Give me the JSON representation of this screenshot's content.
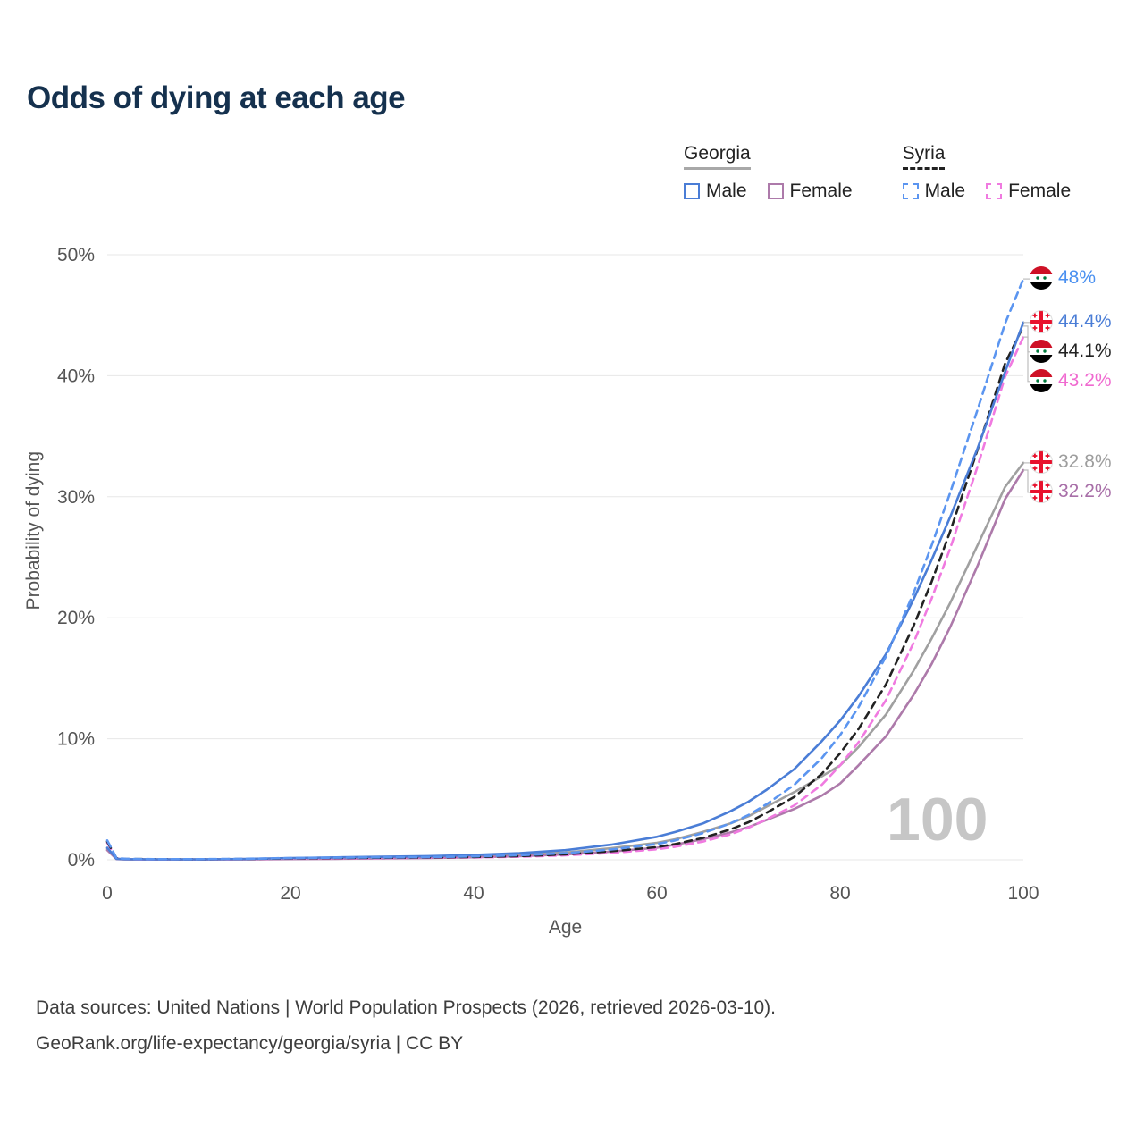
{
  "title": "Odds of dying at each age",
  "legend": {
    "georgia": {
      "label": "Georgia",
      "male": "Male",
      "female": "Female"
    },
    "syria": {
      "label": "Syria",
      "male": "Male",
      "female": "Female"
    }
  },
  "chart_data": {
    "type": "line",
    "title": "Odds of dying at each age",
    "xlabel": "Age",
    "ylabel": "Probability of dying",
    "xlim": [
      0,
      100
    ],
    "ylim": [
      0,
      50
    ],
    "x_ticks": [
      0,
      20,
      40,
      60,
      80,
      100
    ],
    "y_ticks": [
      0,
      10,
      20,
      30,
      40,
      50
    ],
    "y_tick_suffix": "%",
    "grid": "horizontal",
    "legend_position": "top-right",
    "watermark": "100",
    "x": [
      0,
      1,
      2,
      5,
      10,
      15,
      20,
      25,
      30,
      35,
      40,
      45,
      50,
      55,
      60,
      62,
      65,
      68,
      70,
      72,
      75,
      78,
      80,
      82,
      85,
      88,
      90,
      92,
      95,
      98,
      100
    ],
    "series": [
      {
        "id": "georgia-total",
        "name": "Georgia (both sexes)",
        "country": "Georgia",
        "style": "solid",
        "color": "#a0a0a0",
        "label_color": "#9e9e9e",
        "end_label": "32.8%",
        "flag": "georgia",
        "values": [
          0.9,
          0.07,
          0.04,
          0.03,
          0.03,
          0.05,
          0.1,
          0.13,
          0.17,
          0.22,
          0.3,
          0.42,
          0.6,
          0.95,
          1.4,
          1.7,
          2.3,
          3.0,
          3.6,
          4.4,
          5.6,
          6.9,
          7.8,
          9.3,
          12.0,
          15.6,
          18.3,
          21.2,
          26.0,
          30.8,
          32.8
        ]
      },
      {
        "id": "georgia-male",
        "name": "Georgia Male",
        "country": "Georgia",
        "style": "solid",
        "color": "#4a7dd6",
        "label_color": "#4a7dd6",
        "end_label": "44.4%",
        "flag": "georgia",
        "values": [
          1.0,
          0.08,
          0.05,
          0.04,
          0.04,
          0.07,
          0.15,
          0.2,
          0.25,
          0.3,
          0.4,
          0.55,
          0.8,
          1.25,
          1.9,
          2.3,
          3.0,
          4.0,
          4.8,
          5.8,
          7.5,
          9.8,
          11.5,
          13.5,
          17.0,
          21.5,
          24.8,
          28.3,
          34.0,
          40.3,
          44.4
        ]
      },
      {
        "id": "georgia-female",
        "name": "Georgia Female",
        "country": "Georgia",
        "style": "solid",
        "color": "#ad7aaa",
        "label_color": "#a86fa8",
        "end_label": "32.2%",
        "flag": "georgia",
        "values": [
          0.8,
          0.06,
          0.03,
          0.02,
          0.02,
          0.03,
          0.06,
          0.08,
          0.11,
          0.15,
          0.21,
          0.3,
          0.44,
          0.68,
          1.0,
          1.25,
          1.7,
          2.25,
          2.7,
          3.3,
          4.2,
          5.3,
          6.3,
          7.8,
          10.2,
          13.6,
          16.2,
          19.2,
          24.3,
          29.8,
          32.2
        ]
      },
      {
        "id": "syria-total",
        "name": "Syria (both sexes)",
        "country": "Syria",
        "style": "dashed",
        "color": "#222222",
        "label_color": "#222222",
        "end_label": "44.1%",
        "flag": "syria",
        "values": [
          1.5,
          0.13,
          0.07,
          0.05,
          0.04,
          0.07,
          0.12,
          0.15,
          0.17,
          0.19,
          0.23,
          0.3,
          0.45,
          0.7,
          1.05,
          1.3,
          1.8,
          2.5,
          3.1,
          3.9,
          5.2,
          7.1,
          8.8,
          10.8,
          14.5,
          19.3,
          23.0,
          27.1,
          33.9,
          41.0,
          44.1
        ]
      },
      {
        "id": "syria-male",
        "name": "Syria Male",
        "country": "Syria",
        "style": "dashed",
        "color": "#5b95f0",
        "label_color": "#4a90f0",
        "end_label": "48%",
        "flag": "syria",
        "values": [
          1.6,
          0.15,
          0.08,
          0.05,
          0.05,
          0.08,
          0.15,
          0.18,
          0.2,
          0.22,
          0.28,
          0.38,
          0.55,
          0.85,
          1.3,
          1.6,
          2.2,
          3.0,
          3.7,
          4.6,
          6.2,
          8.4,
          10.3,
          12.6,
          16.8,
          22.0,
          26.0,
          30.3,
          37.2,
          44.3,
          48.0
        ]
      },
      {
        "id": "syria-female",
        "name": "Syria Female",
        "country": "Syria",
        "style": "dashed",
        "color": "#f07ae0",
        "label_color": "#f06ad0",
        "end_label": "43.2%",
        "flag": "syria",
        "values": [
          1.4,
          0.12,
          0.06,
          0.04,
          0.04,
          0.06,
          0.1,
          0.12,
          0.14,
          0.16,
          0.19,
          0.25,
          0.37,
          0.57,
          0.87,
          1.08,
          1.5,
          2.1,
          2.65,
          3.35,
          4.5,
          6.2,
          7.8,
          9.7,
          13.2,
          17.9,
          21.6,
          25.7,
          32.5,
          39.9,
          43.2
        ]
      }
    ]
  },
  "footer": {
    "line1": "Data sources: United Nations | World Population Prospects (2026, retrieved 2026-03-10).",
    "line2": "GeoRank.org/life-expectancy/georgia/syria | CC BY"
  }
}
